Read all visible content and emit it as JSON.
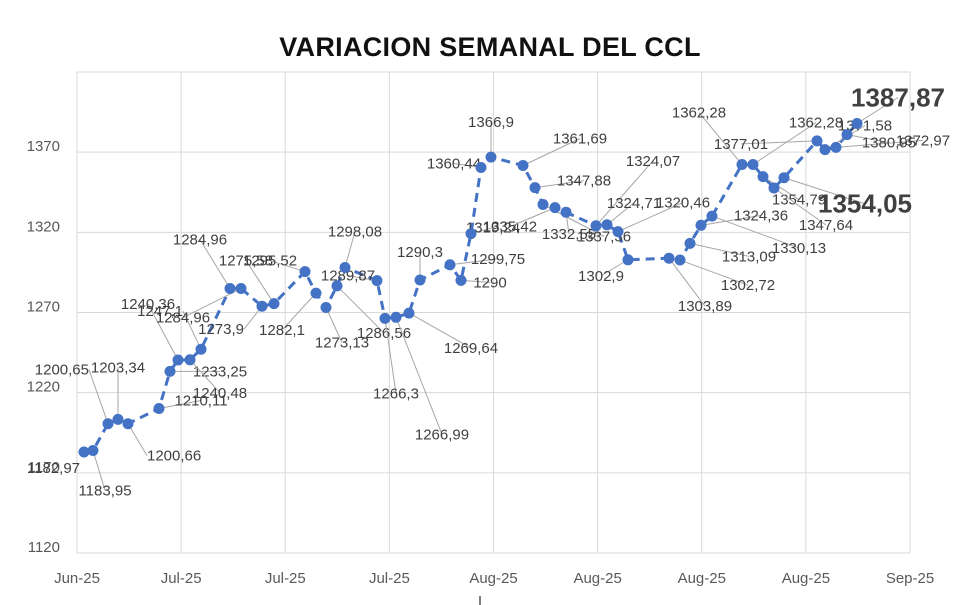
{
  "title": "VARIACION SEMANAL DEL CCL",
  "chart_data": {
    "type": "line",
    "title": "VARIACION SEMANAL DEL CCL",
    "xlabel": "",
    "ylabel": "",
    "ylim": [
      1120,
      1420
    ],
    "yticks": [
      "1120",
      "1170",
      "1220",
      "1270",
      "1320",
      "1370"
    ],
    "xticks": [
      "Jun-25",
      "Jul-25",
      "Jul-25",
      "Jul-25",
      "Aug-25",
      "Aug-25",
      "Aug-25",
      "Aug-25",
      "Sep-25"
    ],
    "grid": true,
    "line_color": "#4472C4",
    "line_style": "dashed",
    "marker": "circle",
    "series": [
      {
        "values": [
          1182.97,
          1183.95,
          1200.65,
          1203.34,
          1200.66,
          1210.11,
          1233.25,
          1240.36,
          1240.48,
          1247.1,
          1284.96,
          1284.96,
          1273.9,
          1275.58,
          1295.52,
          1282.1,
          1273.13,
          1286.56,
          1298.08,
          1289.87,
          1266.3,
          1266.99,
          1269.64,
          1290.3,
          1299.75,
          1290,
          1319.24,
          1360.44,
          1366.9,
          1361.69,
          1347.88,
          1337.36,
          1335.42,
          1332.55,
          1324.07,
          1324.71,
          1320.46,
          1302.9,
          1303.89,
          1302.72,
          1313.09,
          1324.36,
          1330.13,
          1362.28,
          1362.28,
          1354.79,
          1347.64,
          1354.05,
          1377.01,
          1371.58,
          1372.97,
          1380.95,
          1387.87
        ]
      }
    ],
    "data_labels": [
      "1182,97",
      "1183,95",
      "1200,65",
      "1203,34",
      "1200,66",
      "1210,11",
      "1233,25",
      "1240,36",
      "1240,48",
      "1247,1",
      "1284,96",
      "1284,96",
      "1273,9",
      "1275,58",
      "1295,52",
      "1282,1",
      "1273,13",
      "1286,56",
      "1298,08",
      "1289,87",
      "1266,3",
      "1266,99",
      "1269,64",
      "1290,3",
      "1299,75",
      "1290",
      "1319,24",
      "1360,44",
      "1366,9",
      "1361,69",
      "1347,88",
      "1337,36",
      "1335,42",
      "1332,55",
      "1324,07",
      "1324,71",
      "1320,46",
      "1302,9",
      "1303,89",
      "1302,72",
      "1313,09",
      "1324,36",
      "1330,13",
      "1362,28",
      "1362,28",
      "1354,79",
      "1347,64",
      "1354,05",
      "1377,01",
      "1371,58",
      "1372,97",
      "1380,95",
      "1387,87"
    ],
    "highlight_labels": [
      "1354,05",
      "1387,87"
    ]
  }
}
